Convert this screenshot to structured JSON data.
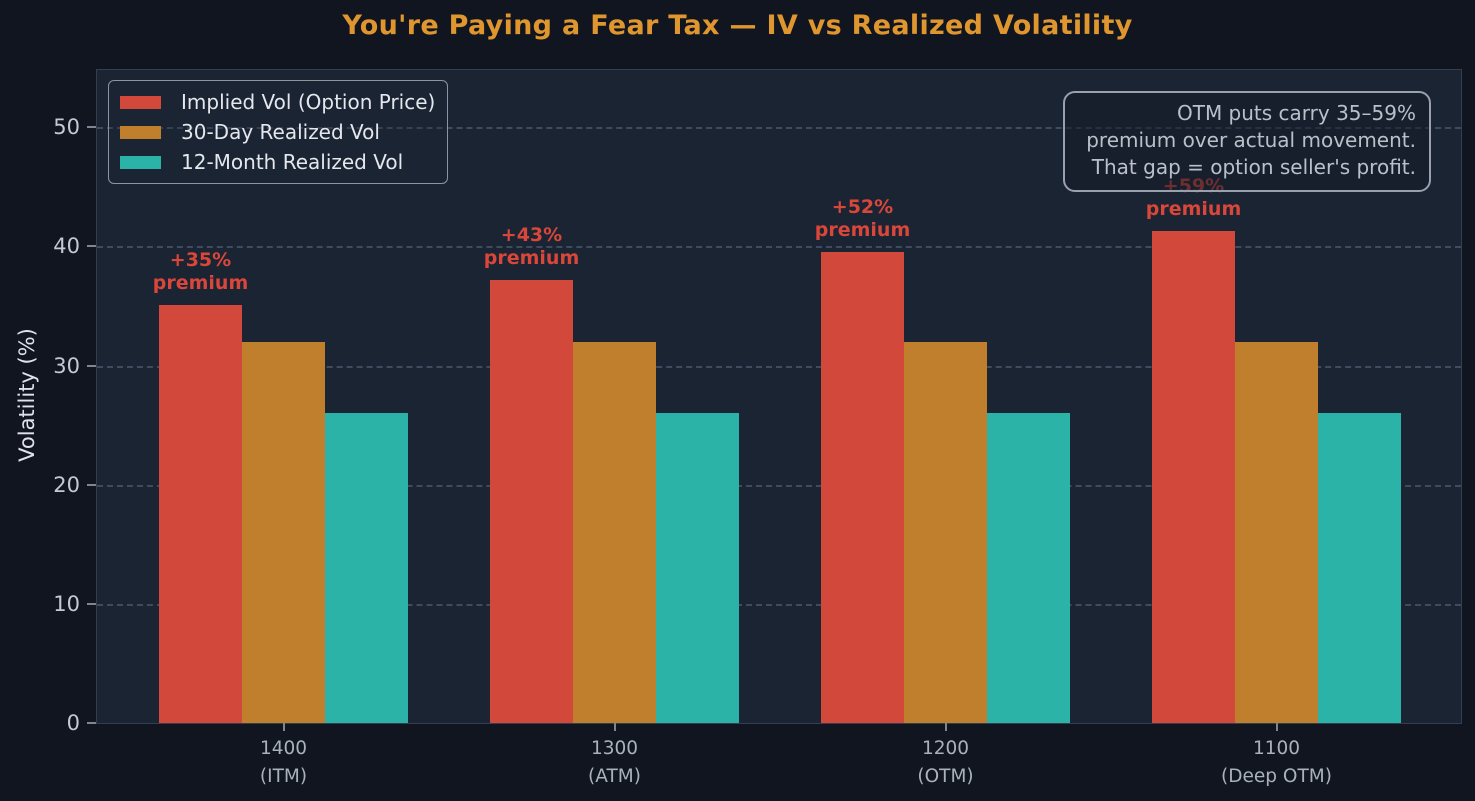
{
  "chart_data": {
    "type": "bar",
    "title": "You're Paying a Fear Tax — IV vs Realized Volatility",
    "xlabel": "",
    "ylabel": "Volatility (%)",
    "ylim": [
      0,
      54.8
    ],
    "yticks": [
      0,
      10,
      20,
      30,
      40,
      50
    ],
    "grid": "horizontal dashed",
    "legend_position": "upper left",
    "categories": [
      {
        "strike": "1400",
        "moneyness": "(ITM)"
      },
      {
        "strike": "1300",
        "moneyness": "(ATM)"
      },
      {
        "strike": "1200",
        "moneyness": "(OTM)"
      },
      {
        "strike": "1100",
        "moneyness": "(Deep OTM)"
      }
    ],
    "series": [
      {
        "name": "Implied Vol (Option Price)",
        "key": "implied-vol",
        "color": "#d2493b",
        "values": [
          35.1,
          37.2,
          39.5,
          41.3
        ]
      },
      {
        "name": "30-Day Realized Vol",
        "key": "realized-vol-30d",
        "color": "#c07f2d",
        "values": [
          32,
          32,
          32,
          32
        ]
      },
      {
        "name": "12-Month Realized Vol",
        "key": "realized-vol-12m",
        "color": "#2cb3a8",
        "values": [
          26,
          26,
          26,
          26
        ]
      }
    ],
    "bar_annotations": [
      {
        "pct": "+35%",
        "word": "premium"
      },
      {
        "pct": "+43%",
        "word": "premium"
      },
      {
        "pct": "+52%",
        "word": "premium"
      },
      {
        "pct": "+59%",
        "word": "premium"
      }
    ]
  },
  "legend": {
    "items": [
      {
        "label": "Implied Vol (Option Price)",
        "color": "#d2493b"
      },
      {
        "label": "30-Day Realized Vol",
        "color": "#c07f2d"
      },
      {
        "label": "12-Month Realized Vol",
        "color": "#2cb3a8"
      }
    ]
  },
  "note": {
    "lines": [
      "OTM puts carry 35–59%",
      "premium over actual movement.",
      "That gap = option seller's profit."
    ]
  },
  "colors": {
    "figure_background": "#10151f",
    "panel_background": "#1b2433",
    "title": "#e0962e",
    "gridline": "#4d5870",
    "annotation_red": "#d9463a",
    "implied_vol": "#d2493b",
    "realized_vol_30d": "#c07f2d",
    "realized_vol_12m": "#2cb3a8"
  }
}
